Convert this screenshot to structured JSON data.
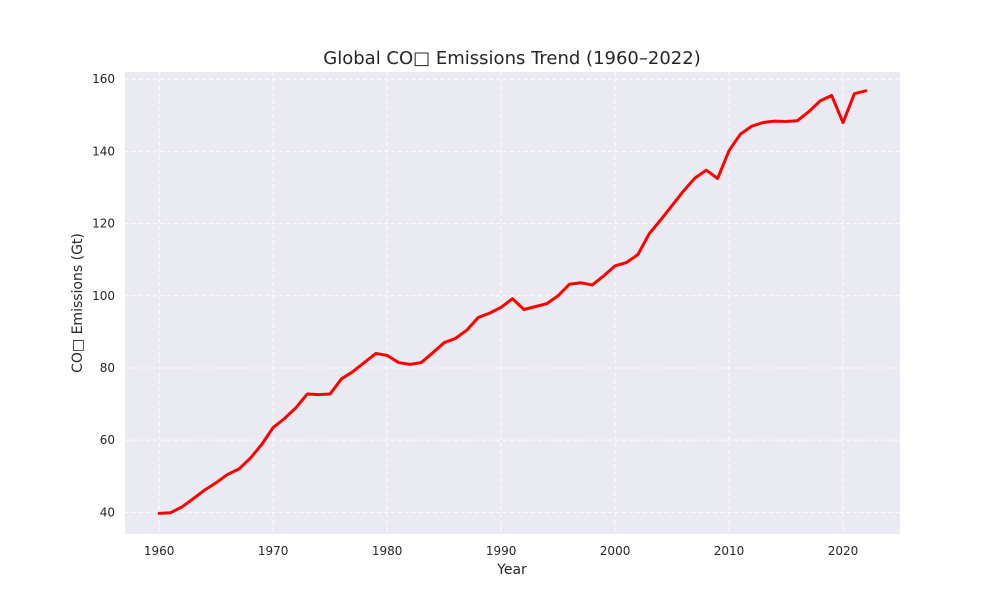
{
  "chart_data": {
    "type": "line",
    "title": "Global CO□ Emissions Trend (1960–2022)",
    "xlabel": "Year",
    "ylabel": "CO□ Emissions (Gt)",
    "xlim": [
      1957,
      2025
    ],
    "ylim": [
      34,
      162
    ],
    "xticks": [
      1960,
      1970,
      1980,
      1990,
      2000,
      2010,
      2020
    ],
    "yticks": [
      40,
      60,
      80,
      100,
      120,
      140,
      160
    ],
    "grid": true,
    "line_color": "#ff0000",
    "background_color": "#eaeaf2",
    "grid_color": "#ffffff",
    "series": [
      {
        "x": [
          1960,
          1961,
          1962,
          1963,
          1964,
          1965,
          1966,
          1967,
          1968,
          1969,
          1970,
          1971,
          1972,
          1973,
          1974,
          1975,
          1976,
          1977,
          1978,
          1979,
          1980,
          1981,
          1982,
          1983,
          1984,
          1985,
          1986,
          1987,
          1988,
          1989,
          1990,
          1991,
          1992,
          1993,
          1994,
          1995,
          1996,
          1997,
          1998,
          1999,
          2000,
          2001,
          2002,
          2003,
          2004,
          2005,
          2006,
          2007,
          2008,
          2009,
          2010,
          2011,
          2012,
          2013,
          2014,
          2015,
          2016,
          2017,
          2018,
          2019,
          2020,
          2021,
          2022
        ],
        "values": [
          39.7,
          39.9,
          41.5,
          43.8,
          46.2,
          48.2,
          50.5,
          52.0,
          55.0,
          58.8,
          63.5,
          66.0,
          69.0,
          72.8,
          72.6,
          72.8,
          77.0,
          79.0,
          81.5,
          84.0,
          83.5,
          81.5,
          81.0,
          81.5,
          84.2,
          87.0,
          88.2,
          90.5,
          94.0,
          95.2,
          96.8,
          99.2,
          96.2,
          97.0,
          97.8,
          100.0,
          103.2,
          103.6,
          103.0,
          105.5,
          108.3,
          109.2,
          111.4,
          117.2,
          121.0,
          125.0,
          129.0,
          132.6,
          134.8,
          132.5,
          140.2,
          144.8,
          147.0,
          148.0,
          148.4,
          148.3,
          148.5,
          151.0,
          154.0,
          155.5,
          148.0,
          156.0,
          156.8
        ]
      }
    ]
  }
}
